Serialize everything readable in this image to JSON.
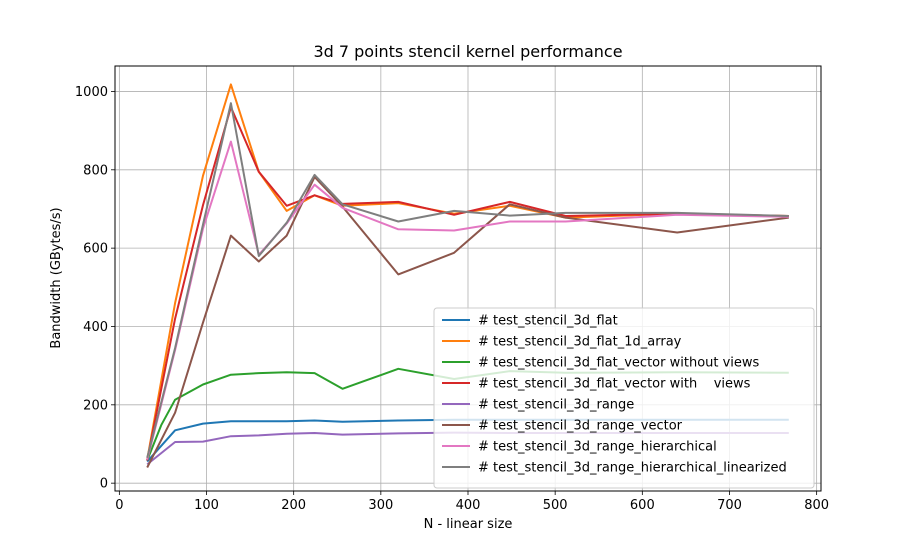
{
  "chart_data": {
    "type": "line",
    "title": "3d 7 points stencil kernel performance",
    "xlabel": "N - linear size",
    "ylabel": "Bandwidth (GBytes/s)",
    "xlim": [
      -5,
      805
    ],
    "ylim": [
      -20,
      1065
    ],
    "xticks": [
      0,
      100,
      200,
      300,
      400,
      500,
      600,
      700,
      800
    ],
    "yticks": [
      0,
      200,
      400,
      600,
      800,
      1000
    ],
    "grid": true,
    "legend_position": "lower-right",
    "series": [
      {
        "name": "# test_stencil_3d_flat",
        "color": "#1f77b4",
        "x": [
          32,
          64,
          96,
          128,
          160,
          192,
          224,
          256,
          320,
          384,
          448,
          512,
          640,
          768
        ],
        "y": [
          55,
          135,
          152,
          158,
          158,
          158,
          160,
          157,
          160,
          162,
          162,
          162,
          162,
          162
        ]
      },
      {
        "name": "# test_stencil_3d_flat_1d_array",
        "color": "#ff7f0e",
        "x": [
          32,
          64,
          96,
          128,
          160,
          192,
          224,
          256,
          320,
          384,
          448,
          512,
          640,
          768
        ],
        "y": [
          60,
          460,
          785,
          1018,
          795,
          695,
          735,
          708,
          715,
          688,
          708,
          678,
          688,
          682
        ]
      },
      {
        "name": "# test_stencil_3d_flat_vector without views",
        "color": "#2ca02c",
        "x": [
          32,
          48,
          64,
          96,
          128,
          160,
          192,
          224,
          256,
          320,
          384,
          448,
          512,
          640,
          768
        ],
        "y": [
          58,
          148,
          213,
          252,
          277,
          281,
          283,
          281,
          241,
          292,
          266,
          286,
          282,
          283,
          282
        ]
      },
      {
        "name": "# test_stencil_3d_flat_vector with    views",
        "color": "#d62728",
        "x": [
          32,
          64,
          96,
          128,
          160,
          192,
          224,
          256,
          320,
          384,
          448,
          512,
          640,
          768
        ],
        "y": [
          58,
          420,
          710,
          960,
          795,
          708,
          735,
          713,
          718,
          685,
          718,
          682,
          688,
          682
        ]
      },
      {
        "name": "# test_stencil_3d_range",
        "color": "#9467bd",
        "x": [
          32,
          64,
          96,
          128,
          160,
          192,
          224,
          256,
          320,
          384,
          448,
          512,
          640,
          768
        ],
        "y": [
          48,
          105,
          106,
          120,
          122,
          126,
          128,
          124,
          127,
          129,
          128,
          128,
          128,
          128
        ]
      },
      {
        "name": "# test_stencil_3d_range_vector",
        "color": "#8c564b",
        "x": [
          32,
          64,
          96,
          128,
          160,
          192,
          224,
          256,
          320,
          384,
          448,
          512,
          640,
          768
        ],
        "y": [
          40,
          180,
          410,
          632,
          566,
          632,
          782,
          706,
          533,
          588,
          712,
          678,
          640,
          678
        ]
      },
      {
        "name": "# test_stencil_3d_range_hierarchical",
        "color": "#e377c2",
        "x": [
          32,
          64,
          96,
          128,
          160,
          192,
          224,
          256,
          320,
          384,
          448,
          512,
          640,
          768
        ],
        "y": [
          60,
          340,
          650,
          872,
          583,
          663,
          762,
          703,
          648,
          645,
          668,
          668,
          685,
          680
        ]
      },
      {
        "name": "# test_stencil_3d_range_hierarchical_linearized",
        "color": "#7f7f7f",
        "x": [
          32,
          64,
          96,
          128,
          160,
          192,
          224,
          256,
          320,
          384,
          448,
          512,
          640,
          768
        ],
        "y": [
          65,
          345,
          660,
          970,
          580,
          665,
          787,
          712,
          668,
          695,
          683,
          690,
          690,
          682
        ]
      }
    ]
  }
}
